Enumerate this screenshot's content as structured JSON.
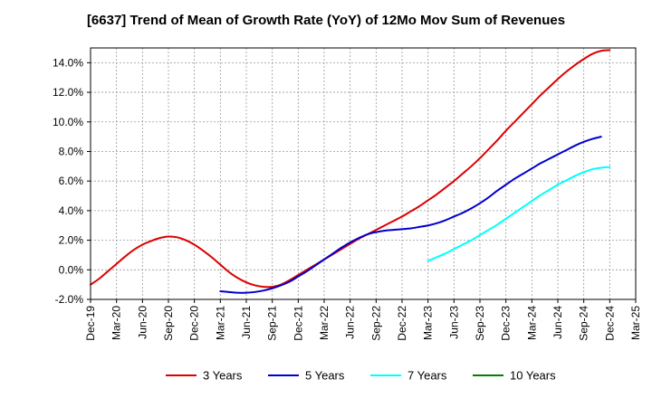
{
  "chart_data": {
    "type": "line",
    "title": "[6637]  Trend of Mean of Growth Rate (YoY) of 12Mo Mov Sum of Revenues",
    "xlabel": "",
    "ylabel": "",
    "ylim": [
      -2.0,
      15.0
    ],
    "yticks": [
      -2.0,
      0.0,
      2.0,
      4.0,
      6.0,
      8.0,
      10.0,
      12.0,
      14.0
    ],
    "ytick_labels": [
      "-2.0%",
      "0.0%",
      "2.0%",
      "4.0%",
      "6.0%",
      "8.0%",
      "10.0%",
      "12.0%",
      "14.0%"
    ],
    "x_months": [
      "Dec-19",
      "Jan-20",
      "Feb-20",
      "Mar-20",
      "Apr-20",
      "May-20",
      "Jun-20",
      "Jul-20",
      "Aug-20",
      "Sep-20",
      "Oct-20",
      "Nov-20",
      "Dec-20",
      "Jan-21",
      "Feb-21",
      "Mar-21",
      "Apr-21",
      "May-21",
      "Jun-21",
      "Jul-21",
      "Aug-21",
      "Sep-21",
      "Oct-21",
      "Nov-21",
      "Dec-21",
      "Jan-22",
      "Feb-22",
      "Mar-22",
      "Apr-22",
      "May-22",
      "Jun-22",
      "Jul-22",
      "Aug-22",
      "Sep-22",
      "Oct-22",
      "Nov-22",
      "Dec-22",
      "Jan-23",
      "Feb-23",
      "Mar-23",
      "Apr-23",
      "May-23",
      "Jun-23",
      "Jul-23",
      "Aug-23",
      "Sep-23",
      "Oct-23",
      "Nov-23",
      "Dec-23",
      "Jan-24",
      "Feb-24",
      "Mar-24",
      "Apr-24",
      "May-24",
      "Jun-24",
      "Jul-24",
      "Aug-24",
      "Sep-24",
      "Oct-24",
      "Nov-24",
      "Dec-24",
      "Jan-25",
      "Feb-25",
      "Mar-25"
    ],
    "xtick_labels": [
      "Dec-19",
      "Mar-20",
      "Jun-20",
      "Sep-20",
      "Dec-20",
      "Mar-21",
      "Jun-21",
      "Sep-21",
      "Dec-21",
      "Mar-22",
      "Jun-22",
      "Sep-22",
      "Dec-22",
      "Mar-23",
      "Jun-23",
      "Sep-23",
      "Dec-23",
      "Mar-24",
      "Jun-24",
      "Sep-24",
      "Dec-24",
      "Mar-25"
    ],
    "grid": true,
    "legend_position": "bottom",
    "series": [
      {
        "name": "3 Years",
        "color": "#dd0000",
        "start_month": "Dec-19",
        "values": [
          -1.0,
          -0.6,
          -0.1,
          0.4,
          0.9,
          1.35,
          1.7,
          1.95,
          2.15,
          2.25,
          2.2,
          2.0,
          1.7,
          1.3,
          0.85,
          0.35,
          -0.15,
          -0.55,
          -0.85,
          -1.05,
          -1.15,
          -1.15,
          -1.0,
          -0.7,
          -0.35,
          0.0,
          0.35,
          0.7,
          1.05,
          1.4,
          1.75,
          2.1,
          2.4,
          2.7,
          3.0,
          3.3,
          3.6,
          3.95,
          4.3,
          4.7,
          5.1,
          5.55,
          6.0,
          6.5,
          7.0,
          7.55,
          8.15,
          8.75,
          9.4,
          10.0,
          10.6,
          11.2,
          11.8,
          12.35,
          12.9,
          13.4,
          13.85,
          14.25,
          14.6,
          14.8,
          14.85
        ]
      },
      {
        "name": "5 Years",
        "color": "#0000cc",
        "start_month": "Mar-21",
        "values": [
          -1.45,
          -1.5,
          -1.55,
          -1.55,
          -1.5,
          -1.4,
          -1.25,
          -1.05,
          -0.8,
          -0.45,
          -0.1,
          0.3,
          0.7,
          1.1,
          1.5,
          1.85,
          2.15,
          2.4,
          2.55,
          2.65,
          2.7,
          2.75,
          2.8,
          2.9,
          3.0,
          3.15,
          3.35,
          3.6,
          3.85,
          4.15,
          4.5,
          4.9,
          5.35,
          5.75,
          6.15,
          6.5,
          6.85,
          7.2,
          7.5,
          7.8,
          8.1,
          8.4,
          8.65,
          8.85,
          9.0
        ]
      },
      {
        "name": "7 Years",
        "color": "#00ffff",
        "start_month": "Mar-23",
        "values": [
          0.6,
          0.85,
          1.1,
          1.4,
          1.7,
          2.0,
          2.35,
          2.7,
          3.05,
          3.45,
          3.85,
          4.25,
          4.65,
          5.05,
          5.4,
          5.75,
          6.05,
          6.35,
          6.6,
          6.8,
          6.9,
          6.95
        ]
      },
      {
        "name": "10 Years",
        "color": "#008000",
        "start_month": "Dec-24",
        "values": []
      }
    ]
  }
}
